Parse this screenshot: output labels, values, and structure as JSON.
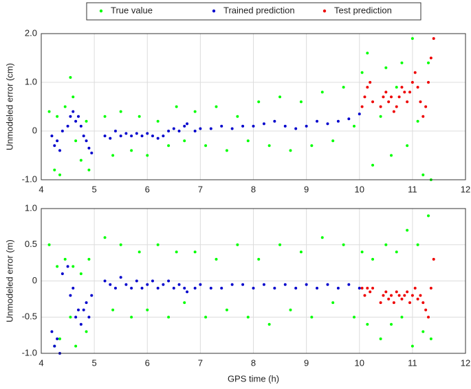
{
  "chart_data": [
    {
      "type": "scatter",
      "ylabel": "Unmodeled error (cm)",
      "grid": true,
      "xlim": [
        4,
        12
      ],
      "xticks": [
        4,
        5,
        6,
        7,
        8,
        9,
        10,
        11,
        12
      ],
      "ylim": [
        -1,
        2
      ],
      "yticks": [
        {
          "value": -1,
          "label": "-1.0"
        },
        0,
        {
          "value": 1,
          "label": "1.0"
        },
        {
          "value": 2,
          "label": "2.0"
        }
      ],
      "series": [
        {
          "name": "True value",
          "color": "#00ff00",
          "x": [
            4.15,
            4.25,
            4.3,
            4.35,
            4.45,
            4.55,
            4.6,
            4.65,
            4.75,
            4.85,
            4.9,
            5.2,
            5.35,
            5.5,
            5.7,
            5.85,
            6.0,
            6.2,
            6.4,
            6.55,
            6.7,
            6.9,
            7.1,
            7.3,
            7.5,
            7.7,
            7.9,
            8.1,
            8.3,
            8.5,
            8.7,
            8.9,
            9.1,
            9.3,
            9.5,
            9.7,
            9.9,
            10.05,
            10.15,
            10.25,
            10.4,
            10.5,
            10.6,
            10.7,
            10.8,
            10.9,
            11.0,
            11.1,
            11.2,
            11.3,
            11.35
          ],
          "values": [
            0.4,
            -0.8,
            0.3,
            -0.9,
            0.5,
            1.1,
            0.7,
            -0.2,
            -0.6,
            0.2,
            -0.8,
            0.3,
            -0.5,
            0.4,
            -0.4,
            0.3,
            -0.5,
            0.2,
            -0.3,
            0.5,
            -0.2,
            0.4,
            -0.3,
            0.5,
            -0.4,
            0.3,
            -0.2,
            0.6,
            -0.3,
            0.7,
            -0.4,
            0.6,
            -0.3,
            0.8,
            -0.2,
            0.9,
            0.1,
            1.2,
            1.6,
            -0.7,
            0.3,
            1.3,
            -0.5,
            0.9,
            1.4,
            -0.3,
            1.9,
            0.2,
            -0.9,
            1.4,
            -1.0
          ]
        },
        {
          "name": "Trained prediction",
          "color": "#0000cc",
          "x": [
            4.2,
            4.25,
            4.3,
            4.35,
            4.4,
            4.5,
            4.55,
            4.6,
            4.65,
            4.7,
            4.75,
            4.8,
            4.85,
            4.9,
            4.95,
            5.2,
            5.3,
            5.4,
            5.5,
            5.6,
            5.7,
            5.8,
            5.9,
            6.0,
            6.1,
            6.2,
            6.3,
            6.4,
            6.5,
            6.6,
            6.7,
            6.75,
            6.9,
            7.0,
            7.2,
            7.4,
            7.6,
            7.8,
            8.0,
            8.2,
            8.4,
            8.6,
            8.8,
            9.0,
            9.2,
            9.4,
            9.6,
            9.8,
            10.0
          ],
          "values": [
            -0.1,
            -0.3,
            -0.2,
            -0.4,
            0.0,
            0.1,
            0.3,
            0.4,
            0.2,
            0.3,
            0.1,
            -0.1,
            -0.2,
            -0.35,
            -0.45,
            -0.1,
            -0.15,
            0.0,
            -0.1,
            -0.05,
            -0.1,
            -0.05,
            -0.1,
            -0.05,
            -0.1,
            -0.15,
            -0.1,
            0.0,
            0.05,
            0.0,
            0.1,
            0.15,
            0.0,
            0.05,
            0.05,
            0.1,
            0.05,
            0.1,
            0.1,
            0.15,
            0.2,
            0.1,
            0.05,
            0.1,
            0.2,
            0.15,
            0.2,
            0.25,
            0.35
          ]
        },
        {
          "name": "Test prediction",
          "color": "#ee0000",
          "x": [
            10.05,
            10.1,
            10.15,
            10.2,
            10.25,
            10.4,
            10.45,
            10.5,
            10.55,
            10.6,
            10.65,
            10.7,
            10.75,
            10.8,
            10.85,
            10.9,
            10.95,
            11.0,
            11.05,
            11.1,
            11.15,
            11.2,
            11.25,
            11.3,
            11.35,
            11.4
          ],
          "values": [
            0.5,
            0.7,
            0.9,
            1.0,
            0.6,
            0.5,
            0.7,
            0.8,
            0.6,
            0.7,
            0.4,
            0.5,
            0.7,
            0.9,
            0.8,
            0.6,
            0.8,
            1.0,
            1.2,
            0.9,
            0.6,
            0.3,
            0.5,
            1.0,
            1.5,
            1.9
          ]
        }
      ]
    },
    {
      "type": "scatter",
      "ylabel": "Unmodeled error (m)",
      "xlabel": "GPS time (h)",
      "grid": true,
      "xlim": [
        4,
        12
      ],
      "xticks": [
        4,
        5,
        6,
        7,
        8,
        9,
        10,
        11,
        12
      ],
      "ylim": [
        -1,
        1
      ],
      "yticks": [
        {
          "value": -1,
          "label": "-1.0"
        },
        -0.5,
        0,
        0.5,
        {
          "value": 1,
          "label": "1.0"
        }
      ],
      "series": [
        {
          "color": "#00ff00",
          "x": [
            4.15,
            4.25,
            4.3,
            4.35,
            4.45,
            4.55,
            4.6,
            4.65,
            4.75,
            4.85,
            4.9,
            5.2,
            5.35,
            5.5,
            5.7,
            5.85,
            6.0,
            6.2,
            6.4,
            6.55,
            6.7,
            6.9,
            7.1,
            7.3,
            7.5,
            7.7,
            7.9,
            8.1,
            8.3,
            8.5,
            8.7,
            8.9,
            9.1,
            9.3,
            9.5,
            9.7,
            9.9,
            10.05,
            10.15,
            10.25,
            10.4,
            10.5,
            10.6,
            10.7,
            10.8,
            10.9,
            11.0,
            11.1,
            11.2,
            11.3,
            11.35
          ],
          "values": [
            0.5,
            -0.9,
            0.2,
            -0.8,
            0.3,
            -0.5,
            0.2,
            -0.9,
            0.1,
            -0.7,
            0.3,
            0.6,
            -0.4,
            0.5,
            -0.5,
            0.4,
            -0.4,
            0.5,
            -0.5,
            0.4,
            -0.3,
            0.4,
            -0.5,
            0.3,
            -0.4,
            0.5,
            -0.5,
            0.3,
            -0.6,
            0.5,
            -0.4,
            0.4,
            -0.5,
            0.6,
            -0.3,
            0.5,
            -0.5,
            0.4,
            -0.6,
            0.3,
            -0.8,
            0.5,
            -0.6,
            0.4,
            -0.5,
            0.7,
            -0.9,
            0.5,
            -0.7,
            0.9,
            -0.8
          ]
        },
        {
          "color": "#0000cc",
          "x": [
            4.2,
            4.25,
            4.3,
            4.35,
            4.4,
            4.5,
            4.55,
            4.6,
            4.65,
            4.7,
            4.75,
            4.8,
            4.85,
            4.9,
            4.95,
            5.2,
            5.3,
            5.4,
            5.5,
            5.6,
            5.7,
            5.8,
            5.9,
            6.0,
            6.1,
            6.2,
            6.3,
            6.4,
            6.5,
            6.6,
            6.7,
            6.75,
            6.9,
            7.0,
            7.2,
            7.4,
            7.6,
            7.8,
            8.0,
            8.2,
            8.4,
            8.6,
            8.8,
            9.0,
            9.2,
            9.4,
            9.6,
            9.8,
            10.0
          ],
          "values": [
            -0.7,
            -0.9,
            -0.8,
            -1.0,
            0.1,
            0.2,
            -0.2,
            -0.1,
            -0.5,
            -0.4,
            -0.6,
            -0.4,
            -0.3,
            -0.5,
            -0.2,
            0.0,
            -0.05,
            -0.1,
            0.05,
            -0.05,
            -0.1,
            0.0,
            -0.1,
            -0.05,
            0.0,
            -0.1,
            -0.05,
            0.0,
            -0.1,
            -0.05,
            -0.1,
            -0.15,
            -0.1,
            -0.05,
            -0.1,
            -0.1,
            -0.05,
            -0.05,
            -0.1,
            -0.05,
            -0.1,
            -0.05,
            -0.1,
            -0.05,
            -0.1,
            -0.05,
            -0.1,
            -0.05,
            -0.1
          ]
        },
        {
          "color": "#ee0000",
          "x": [
            10.05,
            10.1,
            10.15,
            10.2,
            10.25,
            10.4,
            10.45,
            10.5,
            10.55,
            10.6,
            10.65,
            10.7,
            10.75,
            10.8,
            10.85,
            10.9,
            10.95,
            11.0,
            11.05,
            11.1,
            11.15,
            11.2,
            11.25,
            11.3,
            11.35,
            11.4
          ],
          "values": [
            -0.1,
            -0.2,
            -0.1,
            -0.15,
            -0.1,
            -0.3,
            -0.2,
            -0.15,
            -0.25,
            -0.2,
            -0.3,
            -0.15,
            -0.2,
            -0.25,
            -0.2,
            -0.15,
            -0.3,
            -0.2,
            -0.1,
            -0.25,
            -0.2,
            -0.3,
            -0.4,
            -0.5,
            -0.1,
            0.3
          ]
        }
      ]
    }
  ]
}
